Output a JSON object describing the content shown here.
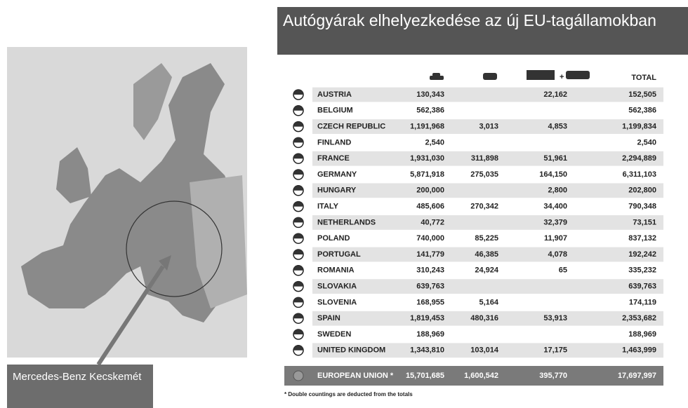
{
  "title": "Autógyárak elhelyezkedése az új EU-tagállamokban",
  "map_caption": "Mercedes-Benz Kecskemét",
  "table": {
    "total_header": "TOTAL",
    "rows": [
      [
        "AUSTRIA",
        "130,343",
        null,
        "22,162",
        "152,505"
      ],
      [
        "BELGIUM",
        "562,386",
        null,
        null,
        "562,386"
      ],
      [
        "CZECH REPUBLIC",
        "1,191,968",
        "3,013",
        "4,853",
        "1,199,834"
      ],
      [
        "FINLAND",
        "2,540",
        null,
        null,
        "2,540"
      ],
      [
        "FRANCE",
        "1,931,030",
        "311,898",
        "51,961",
        "2,294,889"
      ],
      [
        "GERMANY",
        "5,871,918",
        "275,035",
        "164,150",
        "6,311,103"
      ],
      [
        "HUNGARY",
        "200,000",
        null,
        "2,800",
        "202,800"
      ],
      [
        "ITALY",
        "485,606",
        "270,342",
        "34,400",
        "790,348"
      ],
      [
        "NETHERLANDS",
        "40,772",
        null,
        "32,379",
        "73,151"
      ],
      [
        "POLAND",
        "740,000",
        "85,225",
        "11,907",
        "837,132"
      ],
      [
        "PORTUGAL",
        "141,779",
        "46,385",
        "4,078",
        "192,242"
      ],
      [
        "ROMANIA",
        "310,243",
        "24,924",
        "65",
        "335,232"
      ],
      [
        "SLOVAKIA",
        "639,763",
        null,
        null,
        "639,763"
      ],
      [
        "SLOVENIA",
        "168,955",
        "5,164",
        null,
        "174,119"
      ],
      [
        "SPAIN",
        "1,819,453",
        "480,316",
        "53,913",
        "2,353,682"
      ],
      [
        "SWEDEN",
        "188,969",
        null,
        null,
        "188,969"
      ],
      [
        "UNITED KINGDOM",
        "1,343,810",
        "103,014",
        "17,175",
        "1,463,999"
      ]
    ],
    "total_row": [
      "EUROPEAN UNION *",
      "15,701,685",
      "1,600,542",
      "395,770",
      "17,697,997"
    ],
    "footnote": "* Double countings are deducted from the totals"
  }
}
